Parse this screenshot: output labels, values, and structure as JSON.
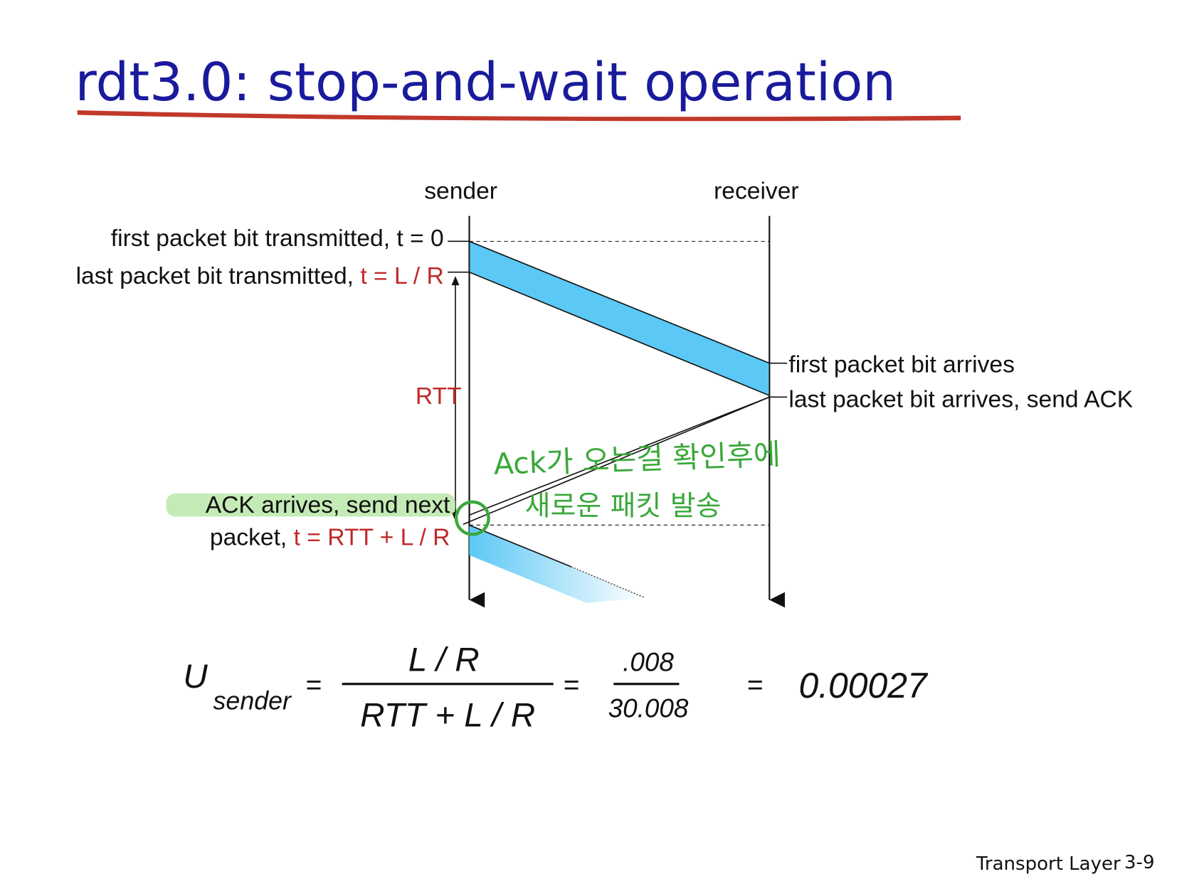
{
  "title": "rdt3.0: stop-and-wait operation",
  "diagram": {
    "sender": "sender",
    "receiver": "receiver",
    "sender_events": [
      {
        "text": "first packet bit transmitted, t = 0"
      },
      {
        "text": "last packet bit transmitted, ",
        "time": "t = L / R"
      },
      {
        "text": "ACK arrives, send next"
      },
      {
        "text": "packet, ",
        "time": "t = RTT + L / R"
      }
    ],
    "receiver_events": [
      "first packet bit arrives",
      "last packet bit arrives, send ACK"
    ],
    "rtt": "RTT"
  },
  "annotation": [
    "Ack가 오는걸 확인후에",
    "새로운 패킷 발송"
  ],
  "formula": {
    "symbol": "U",
    "subscript": "sender",
    "equals": "=",
    "numerator": "L / R",
    "denominator": "RTT + L / R",
    "value_numerator": ".008",
    "value_denominator": "30.008",
    "result": "0.00027"
  },
  "footer": {
    "text": "Transport Layer",
    "page": "3-9"
  }
}
